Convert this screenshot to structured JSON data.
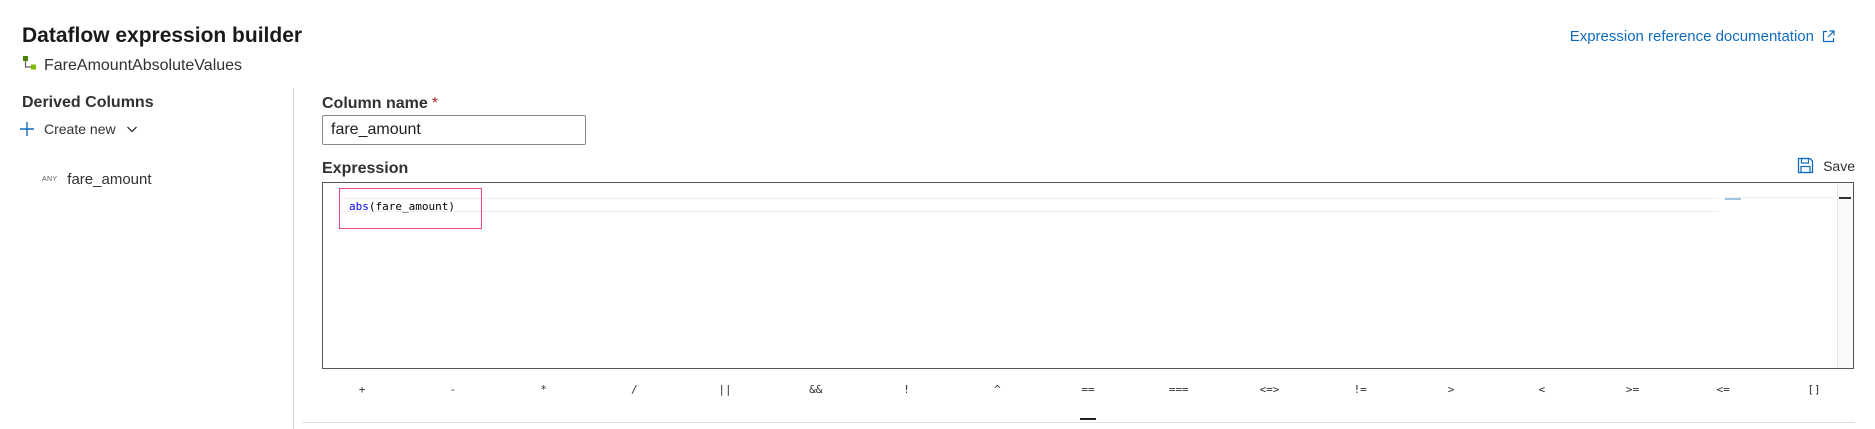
{
  "header": {
    "title": "Dataflow expression builder",
    "subtitle": "FareAmountAbsoluteValues",
    "doc_link": "Expression reference documentation"
  },
  "sidebar": {
    "heading": "Derived Columns",
    "create_new": "Create new",
    "items": [
      {
        "type": "ANY",
        "label": "fare_amount"
      }
    ]
  },
  "form": {
    "column_name_label": "Column name",
    "required_mark": "*",
    "column_name_value": "fare_amount",
    "expression_label": "Expression",
    "save_label": "Save"
  },
  "editor": {
    "function_name": "abs",
    "arguments": "(fare_amount)"
  },
  "operators": [
    "+",
    "-",
    "*",
    "/",
    "||",
    "&&",
    "!",
    "^",
    "==",
    "===",
    "<=>",
    "!=",
    ">",
    "<",
    ">=",
    "<=",
    "[]"
  ],
  "icons": {
    "subtitle": "derived-column-icon",
    "doc_link": "external-link-icon",
    "create_new": "plus-icon",
    "dropdown": "chevron-down-icon",
    "save": "save-icon"
  },
  "colors": {
    "accent": "#0f6cbd",
    "highlight": "#e8457b",
    "required": "#a4262c",
    "function": "#0000ff"
  }
}
